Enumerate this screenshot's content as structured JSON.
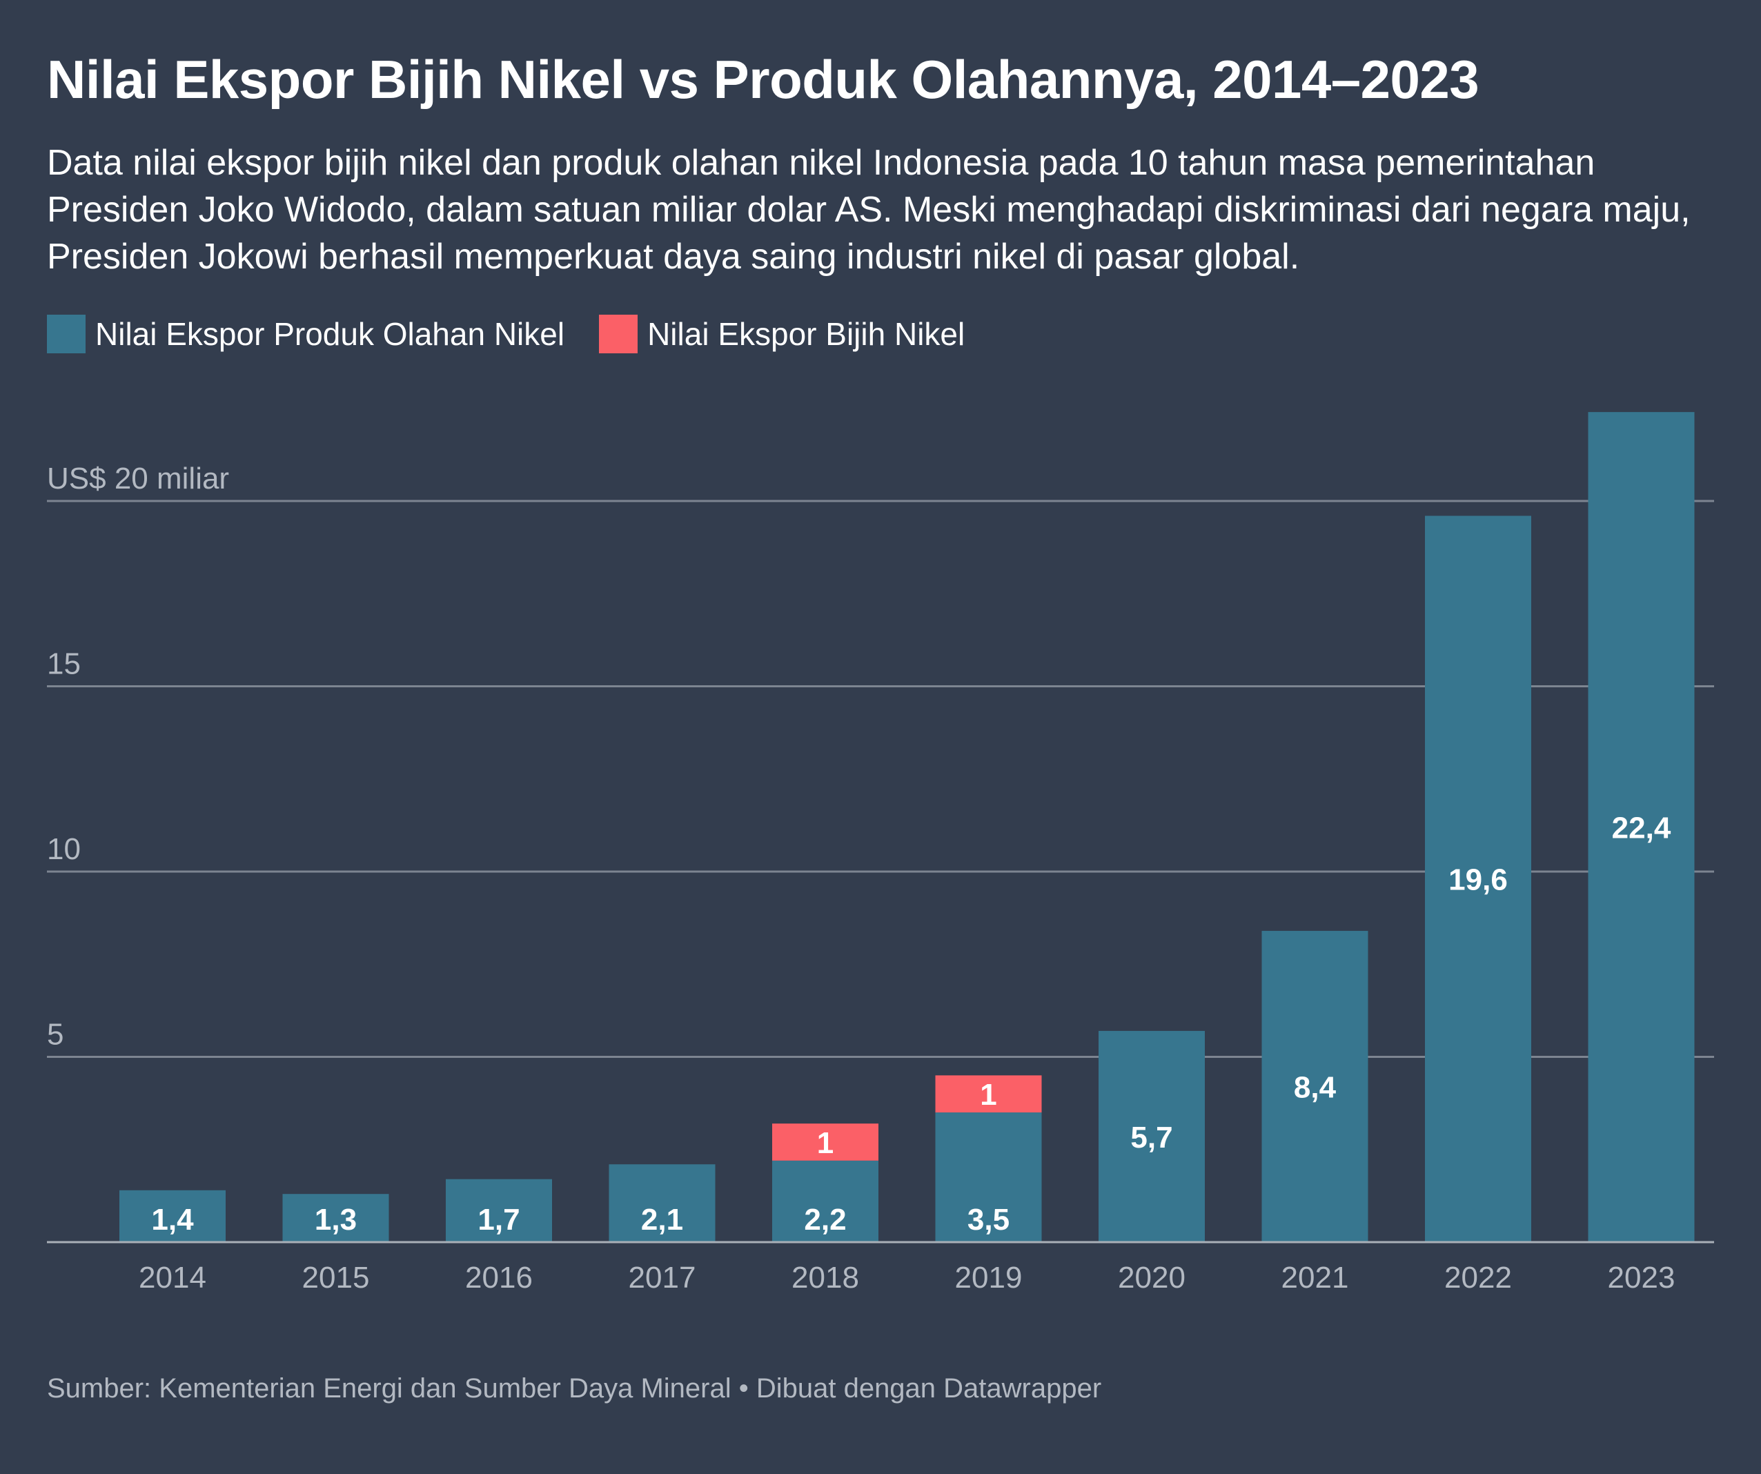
{
  "title": "Nilai Ekspor Bijih Nikel vs Produk Olahannya, 2014–2023",
  "subtitle": "Data nilai ekspor bijih nikel dan produk olahan nikel Indonesia pada 10 tahun masa pemerintahan Presiden Joko Widodo, dalam satuan miliar dolar AS. Meski menghadapi diskriminasi dari negara maju, Presiden Jokowi berhasil memperkuat daya saing industri nikel di pasar global.",
  "legend": [
    {
      "label": "Nilai Ekspor Produk Olahan Nikel",
      "color": "#37768f"
    },
    {
      "label": "Nilai Ekspor Bijih Nikel",
      "color": "#fb6067"
    }
  ],
  "footer": "Sumber: Kementerian Energi dan Sumber Daya Mineral • Dibuat dengan Datawrapper",
  "chart_data": {
    "type": "bar",
    "stacked": true,
    "categories": [
      "2014",
      "2015",
      "2016",
      "2017",
      "2018",
      "2019",
      "2020",
      "2021",
      "2022",
      "2023"
    ],
    "series": [
      {
        "name": "Nilai Ekspor Produk Olahan Nikel",
        "color": "#37768f",
        "values": [
          1.4,
          1.3,
          1.7,
          2.1,
          2.2,
          3.5,
          5.7,
          8.4,
          19.6,
          22.4
        ],
        "labels": [
          "1,4",
          "1,3",
          "1,7",
          "2,1",
          "2,2",
          "3,5",
          "5,7",
          "8,4",
          "19,6",
          "22,4"
        ]
      },
      {
        "name": "Nilai Ekspor Bijih Nikel",
        "color": "#fb6067",
        "values": [
          0,
          0,
          0,
          0,
          1,
          1,
          0,
          0,
          0,
          0
        ],
        "labels": [
          "",
          "",
          "",
          "",
          "1",
          "1",
          "",
          "",
          "",
          ""
        ]
      }
    ],
    "yticks": [
      {
        "value": 5,
        "label": "5"
      },
      {
        "value": 10,
        "label": "10"
      },
      {
        "value": 15,
        "label": "15"
      },
      {
        "value": 20,
        "label": "US$ 20 miliar"
      }
    ],
    "ylim": [
      0,
      22.4
    ],
    "grid": true,
    "legend_position": "top-left"
  }
}
